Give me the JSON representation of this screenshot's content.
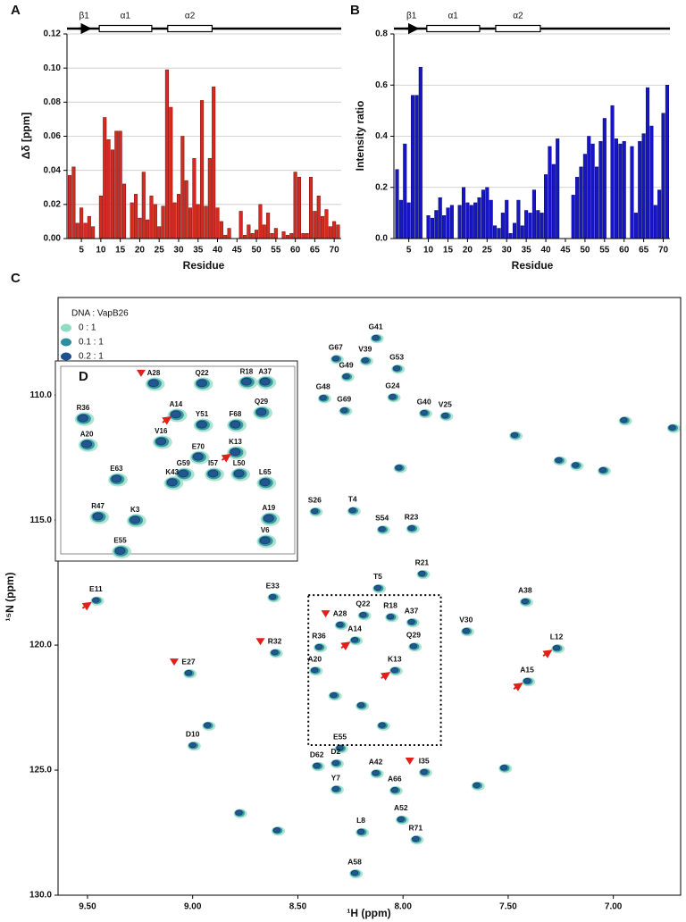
{
  "chart_data": [
    {
      "type": "bar",
      "panel": "A",
      "xlabel": "Residue",
      "ylabel": "Δδ [ppm]",
      "structure_labels": [
        "β1",
        "α1",
        "α2"
      ],
      "x": [
        2,
        3,
        4,
        5,
        6,
        7,
        8,
        9,
        10,
        11,
        12,
        13,
        14,
        15,
        16,
        17,
        18,
        19,
        20,
        21,
        22,
        23,
        24,
        25,
        26,
        27,
        28,
        29,
        30,
        31,
        32,
        33,
        34,
        35,
        36,
        37,
        38,
        39,
        40,
        41,
        42,
        43,
        44,
        45,
        46,
        47,
        48,
        49,
        50,
        51,
        52,
        53,
        54,
        55,
        56,
        57,
        58,
        59,
        60,
        61,
        62,
        63,
        64,
        65,
        66,
        67,
        68,
        69,
        70,
        71
      ],
      "values": [
        0.037,
        0.042,
        0.009,
        0.018,
        0.009,
        0.013,
        0.007,
        null,
        0.025,
        0.071,
        0.058,
        0.052,
        0.063,
        0.063,
        0.032,
        null,
        0.021,
        0.026,
        0.012,
        0.039,
        0.011,
        0.025,
        0.02,
        0.007,
        0.019,
        0.099,
        0.077,
        0.021,
        0.026,
        0.06,
        0.034,
        0.018,
        0.047,
        0.02,
        0.081,
        0.019,
        0.047,
        0.089,
        0.018,
        0.01,
        0.002,
        0.006,
        null,
        null,
        0.016,
        0.002,
        0.008,
        0.003,
        0.005,
        0.02,
        0.008,
        0.015,
        0.003,
        0.006,
        null,
        0.004,
        0.002,
        0.003,
        0.039,
        0.036,
        0.003,
        0.003,
        0.036,
        0.016,
        0.025,
        0.013,
        0.017,
        0.007,
        0.01,
        0.008
      ],
      "color": "#d42a22",
      "edge": "#7a0a05",
      "xlim": [
        1.3,
        71.8
      ],
      "xticks": [
        5,
        10,
        15,
        20,
        25,
        30,
        35,
        40,
        45,
        50,
        55,
        60,
        65,
        70
      ],
      "ylim": [
        0,
        0.12
      ],
      "yticks": [
        {
          "value": 0,
          "label": "0.00"
        },
        0.02,
        0.04,
        0.06,
        0.08,
        {
          "value": 0.1,
          "label": "0.10"
        },
        0.12
      ],
      "grid": true
    },
    {
      "type": "bar",
      "panel": "B",
      "xlabel": "Residue",
      "ylabel": "Intensity ratio",
      "structure_labels": [
        "β1",
        "α1",
        "α2"
      ],
      "x": [
        2,
        3,
        4,
        5,
        6,
        7,
        8,
        9,
        10,
        11,
        12,
        13,
        14,
        15,
        16,
        17,
        18,
        19,
        20,
        21,
        22,
        23,
        24,
        25,
        26,
        27,
        28,
        29,
        30,
        31,
        32,
        33,
        34,
        35,
        36,
        37,
        38,
        39,
        40,
        41,
        42,
        43,
        44,
        45,
        46,
        47,
        48,
        49,
        50,
        51,
        52,
        53,
        54,
        55,
        56,
        57,
        58,
        59,
        60,
        61,
        62,
        63,
        64,
        65,
        66,
        67,
        68,
        69,
        70,
        71
      ],
      "values": [
        0.27,
        0.15,
        0.37,
        0.14,
        0.56,
        0.56,
        0.67,
        null,
        0.09,
        0.08,
        0.11,
        0.16,
        0.09,
        0.12,
        0.13,
        null,
        0.13,
        0.2,
        0.14,
        0.13,
        0.14,
        0.16,
        0.19,
        0.2,
        0.15,
        0.05,
        0.04,
        0.1,
        0.15,
        0.02,
        0.06,
        0.15,
        0.05,
        0.11,
        0.1,
        0.19,
        0.11,
        0.1,
        0.25,
        0.36,
        0.29,
        0.39,
        null,
        null,
        null,
        0.17,
        0.24,
        0.28,
        0.33,
        0.4,
        0.37,
        0.28,
        0.38,
        0.47,
        null,
        0.52,
        0.39,
        0.37,
        0.38,
        null,
        0.36,
        0.1,
        0.38,
        0.41,
        0.59,
        0.44,
        0.13,
        0.19,
        0.49,
        0.6
      ],
      "color": "#1616c8",
      "edge": "#08086a",
      "xlim": [
        1.2,
        71.7
      ],
      "xticks": [
        5,
        10,
        15,
        20,
        25,
        30,
        35,
        40,
        45,
        50,
        55,
        60,
        65,
        70
      ],
      "ylim": [
        0,
        0.8
      ],
      "yticks": [
        {
          "value": 0,
          "label": "0.0"
        },
        0.2,
        0.4,
        0.6,
        0.8
      ],
      "grid": true
    },
    {
      "type": "scatter",
      "panel": "C",
      "xlabel": "¹H (ppm)",
      "ylabel": "¹⁵N (ppm)",
      "legend_title": "DNA : VapB26",
      "series": [
        {
          "name": "0 : 1",
          "color": "#8fdcc0"
        },
        {
          "name": "0.1 : 1",
          "color": "#2a8f9e"
        },
        {
          "name": "0.2 : 1",
          "color": "#1f4f8c"
        }
      ],
      "x": [
        8.13,
        8.32,
        8.18,
        8.03,
        8.27,
        8.38,
        8.05,
        8.28,
        7.9,
        7.8,
        8.42,
        8.24,
        8.1,
        7.96,
        7.91,
        8.12,
        8.62,
        7.42,
        8.19,
        8.06,
        8.3,
        7.96,
        7.7,
        7.95,
        8.4,
        8.23,
        7.27,
        8.42,
        8.04,
        7.41,
        8.61,
        9.02,
        9.46,
        8.3,
        8.32,
        8.41,
        8.13,
        7.9,
        8.04,
        8.32,
        8.01,
        8.2,
        7.94,
        9.0,
        8.23,
        8.02,
        7.18,
        7.05,
        7.26,
        6.72,
        6.95,
        7.47,
        8.33,
        8.2,
        8.1,
        7.65,
        7.52,
        8.93,
        8.78,
        8.6
      ],
      "values": [
        107.71,
        108.54,
        108.61,
        108.93,
        109.25,
        110.11,
        110.07,
        110.61,
        110.71,
        110.82,
        114.64,
        114.61,
        115.36,
        115.32,
        117.14,
        117.71,
        118.07,
        118.25,
        118.79,
        118.86,
        119.18,
        119.07,
        119.43,
        120.04,
        120.07,
        119.79,
        120.11,
        121.0,
        121.0,
        121.43,
        120.29,
        121.11,
        118.2,
        124.11,
        124.71,
        124.82,
        125.11,
        125.07,
        125.79,
        125.75,
        126.96,
        127.46,
        127.75,
        124.0,
        129.11,
        112.9,
        112.8,
        113.0,
        112.6,
        111.3,
        111.0,
        111.6,
        122.0,
        122.4,
        123.2,
        125.6,
        124.9,
        123.2,
        126.7,
        127.4
      ],
      "labels": [
        "G41",
        "G67",
        "V39",
        "G53",
        "G49",
        "G48",
        "G24",
        "G69",
        "G40",
        "V25",
        "S26",
        "T4",
        "S54",
        "R23",
        "R21",
        "T5",
        "E33",
        "A38",
        "Q22",
        "R18",
        "A28",
        "A37",
        "V30",
        "Q29",
        "R36",
        "A14",
        "L12",
        "A20",
        "K13",
        "A15",
        "R32",
        "E27",
        "E11",
        "E55",
        "D2",
        "D62",
        "A42",
        "I35",
        "A66",
        "Y7",
        "A52",
        "L8",
        "R71",
        "D10",
        "A58",
        null,
        null,
        null,
        null,
        null,
        null,
        null,
        null,
        null,
        null,
        null,
        null,
        null,
        null,
        null
      ],
      "xlim": [
        9.64,
        6.68
      ],
      "xticks": [
        {
          "value": 9.5,
          "label": "9.50"
        },
        {
          "value": 9,
          "label": "9.00"
        },
        {
          "value": 8.5,
          "label": "8.50"
        },
        {
          "value": 8,
          "label": "8.00"
        },
        {
          "value": 7.5,
          "label": "7.50"
        },
        {
          "value": 7,
          "label": "7.00"
        }
      ],
      "ylim": [
        130,
        106.1
      ],
      "yticks": [
        {
          "value": 110,
          "label": "110.0"
        },
        {
          "value": 115,
          "label": "115.0"
        },
        {
          "value": 120,
          "label": "120.0"
        },
        {
          "value": 125,
          "label": "125.0"
        },
        {
          "value": 130,
          "label": "130.0"
        }
      ],
      "grid": false
    },
    {
      "type": "scatter",
      "panel": "D",
      "x": [
        8.2,
        8.07,
        7.95,
        7.9,
        8.39,
        8.14,
        8.07,
        7.98,
        7.91,
        8.38,
        8.18,
        8.08,
        7.98,
        8.12,
        8.04,
        7.97,
        8.3,
        8.15,
        7.9,
        8.35,
        8.25,
        7.89,
        7.9,
        8.29
      ],
      "values": [
        118.54,
        118.54,
        118.49,
        118.49,
        119.66,
        119.54,
        119.86,
        119.86,
        119.46,
        120.49,
        120.4,
        120.89,
        120.74,
        121.43,
        121.43,
        121.43,
        121.6,
        121.71,
        121.71,
        122.8,
        122.91,
        122.86,
        123.57,
        123.9
      ],
      "labels": [
        "A28",
        "Q22",
        "R18",
        "A37",
        "R36",
        "A14",
        "Y51",
        "F68",
        "Q29",
        "A20",
        "V16",
        "E70",
        "K13",
        "G59",
        "I57",
        "L50",
        "E63",
        "K43",
        "L65",
        "R47",
        "K3",
        "A19",
        "V6",
        "E55"
      ],
      "xlim": [
        8.45,
        7.82
      ],
      "ylim": [
        124,
        118
      ],
      "grid": false
    }
  ]
}
